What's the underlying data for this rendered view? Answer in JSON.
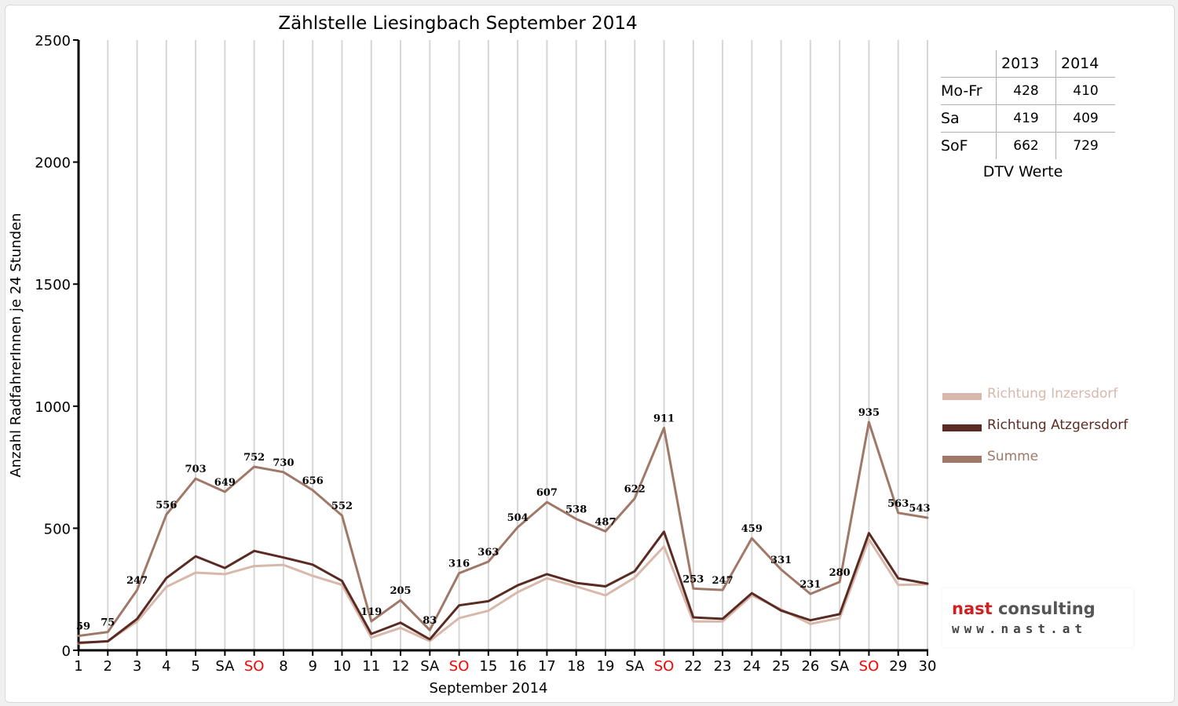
{
  "chart_data": {
    "type": "line",
    "title": "Zählstelle Liesingbach September 2014",
    "xlabel": "September 2014",
    "ylabel": "Anzahl RadfahrerInnen je 24 Stunden",
    "ylim": [
      0,
      2500
    ],
    "yticks": [
      0,
      500,
      1000,
      1500,
      2000,
      2500
    ],
    "grid": "vertical",
    "legend_position": "right",
    "categories": [
      "1",
      "2",
      "3",
      "4",
      "5",
      "SA",
      "SO",
      "8",
      "9",
      "10",
      "11",
      "12",
      "SA",
      "SO",
      "15",
      "16",
      "17",
      "18",
      "19",
      "SA",
      "SO",
      "22",
      "23",
      "24",
      "25",
      "26",
      "SA",
      "SO",
      "29",
      "30"
    ],
    "highlight_categories": [
      "SO"
    ],
    "highlight_color": "#ff0000",
    "series": [
      {
        "name": "Richtung Inzersdorf",
        "color": "#d7b8ab",
        "values": [
          28,
          38,
          118,
          260,
          318,
          312,
          345,
          350,
          305,
          268,
          52,
          92,
          38,
          132,
          162,
          238,
          295,
          262,
          225,
          298,
          425,
          118,
          118,
          225,
          168,
          108,
          132,
          455,
          268,
          270
        ]
      },
      {
        "name": "Richtung Atzgersdorf",
        "color": "#5a2b22",
        "values": [
          31,
          37,
          129,
          296,
          385,
          337,
          407,
          380,
          351,
          284,
          67,
          113,
          45,
          184,
          201,
          266,
          312,
          276,
          262,
          324,
          486,
          135,
          129,
          234,
          163,
          123,
          148,
          480,
          295,
          273
        ]
      },
      {
        "name": "Summe",
        "color": "#a07868",
        "values": [
          59,
          75,
          247,
          556,
          703,
          649,
          752,
          730,
          656,
          552,
          119,
          205,
          83,
          316,
          363,
          504,
          607,
          538,
          487,
          622,
          911,
          253,
          247,
          459,
          331,
          231,
          280,
          935,
          563,
          543
        ]
      }
    ]
  },
  "dtv_table": {
    "years": [
      "2013",
      "2014"
    ],
    "rows": [
      {
        "label": "Mo-Fr",
        "v2013": "428",
        "v2014": "410"
      },
      {
        "label": "Sa",
        "v2013": "419",
        "v2014": "409"
      },
      {
        "label": "SoF",
        "v2013": "662",
        "v2014": "729"
      }
    ],
    "caption": "DTV Werte"
  },
  "logo": {
    "name_part1": "nast",
    "name_part2": "consulting",
    "url": "www.nast.at"
  }
}
